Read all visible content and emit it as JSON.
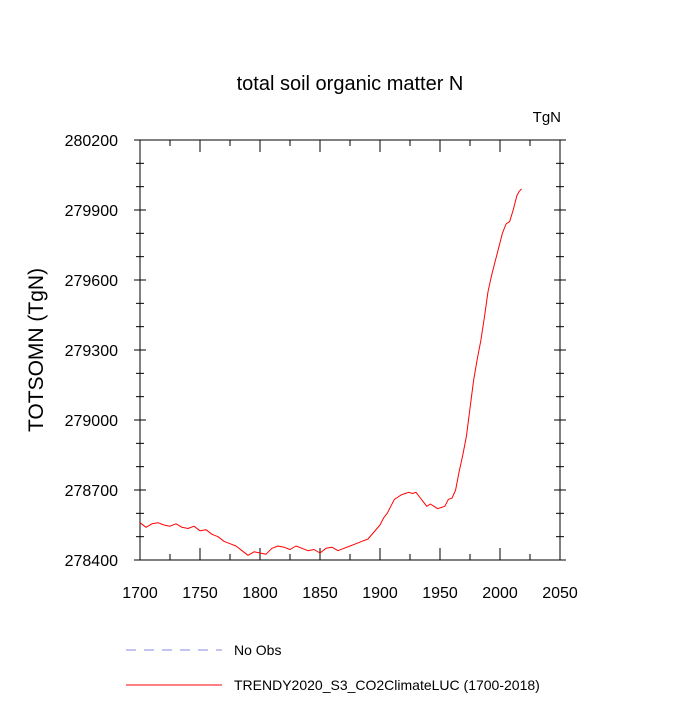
{
  "chart_data": {
    "type": "line",
    "title": "total soil organic matter N",
    "units": "TgN",
    "xlabel": "",
    "ylabel": "TOTSOMN  (TgN)",
    "xlim": [
      1700,
      2050
    ],
    "ylim": [
      278400,
      280200
    ],
    "xticks": [
      1700,
      1750,
      1800,
      1850,
      1900,
      1950,
      2000,
      2050
    ],
    "yticks": [
      278400,
      278700,
      279000,
      279300,
      279600,
      279900,
      280200
    ],
    "legend": [
      {
        "label": "No Obs",
        "color": "#8a8ae6",
        "style": "dashed"
      },
      {
        "label": "TRENDY2020_S3_CO2ClimateLUC (1700-2018)",
        "color": "#ff0000",
        "style": "solid"
      }
    ],
    "series": [
      {
        "name": "TRENDY2020_S3_CO2ClimateLUC (1700-2018)",
        "color": "#ff0000",
        "x": [
          1700,
          1705,
          1710,
          1715,
          1720,
          1725,
          1730,
          1735,
          1740,
          1745,
          1750,
          1755,
          1760,
          1765,
          1770,
          1775,
          1780,
          1785,
          1790,
          1795,
          1800,
          1805,
          1810,
          1815,
          1820,
          1825,
          1830,
          1835,
          1840,
          1845,
          1850,
          1855,
          1860,
          1865,
          1870,
          1875,
          1880,
          1885,
          1890,
          1895,
          1900,
          1903,
          1906,
          1909,
          1912,
          1915,
          1918,
          1921,
          1924,
          1927,
          1930,
          1933,
          1936,
          1939,
          1942,
          1945,
          1948,
          1951,
          1954,
          1957,
          1960,
          1963,
          1966,
          1969,
          1972,
          1975,
          1978,
          1981,
          1984,
          1987,
          1990,
          1993,
          1996,
          1999,
          2002,
          2005,
          2008,
          2011,
          2014,
          2016,
          2018
        ],
        "values": [
          278560,
          278540,
          278555,
          278560,
          278550,
          278545,
          278555,
          278540,
          278535,
          278545,
          278525,
          278530,
          278510,
          278500,
          278480,
          278470,
          278460,
          278440,
          278420,
          278435,
          278430,
          278425,
          278450,
          278460,
          278455,
          278445,
          278460,
          278450,
          278440,
          278445,
          278430,
          278450,
          278455,
          278440,
          278450,
          278460,
          278470,
          278480,
          278490,
          278520,
          278550,
          278580,
          278600,
          278630,
          278660,
          278670,
          278680,
          278685,
          278690,
          278685,
          278690,
          278670,
          278650,
          278630,
          278640,
          278630,
          278620,
          278625,
          278630,
          278660,
          278665,
          278700,
          278780,
          278850,
          278930,
          279050,
          279170,
          279260,
          279340,
          279440,
          279550,
          279620,
          279680,
          279740,
          279800,
          279840,
          279850,
          279900,
          279960,
          279980,
          279990
        ]
      }
    ]
  }
}
